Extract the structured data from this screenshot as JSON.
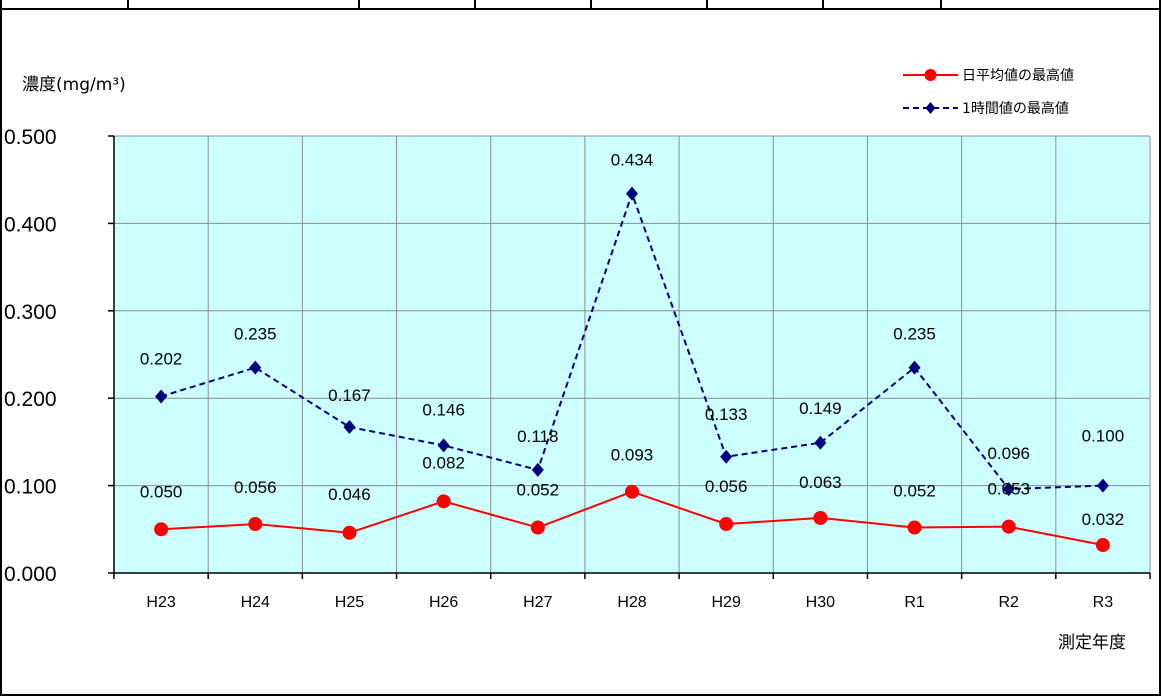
{
  "chart_data": {
    "type": "line",
    "ylabel": "濃度(mg/m³)",
    "xlabel": "測定年度",
    "categories": [
      "H23",
      "H24",
      "H25",
      "H26",
      "H27",
      "H28",
      "H29",
      "H30",
      "R1",
      "R2",
      "R3"
    ],
    "ylim": [
      0,
      0.5
    ],
    "yticks": [
      "0.000",
      "0.100",
      "0.200",
      "0.300",
      "0.400",
      "0.500"
    ],
    "grid": true,
    "legend_position": "top-right",
    "plot_background": "#ccffff",
    "series": [
      {
        "name": "日平均値の最高値",
        "color": "#ff0000",
        "marker": "circle",
        "line_style": "solid",
        "values": [
          0.05,
          0.056,
          0.046,
          0.082,
          0.052,
          0.093,
          0.056,
          0.063,
          0.052,
          0.053,
          0.032
        ],
        "labels": [
          "0.050",
          "0.056",
          "0.046",
          "0.082",
          "0.052",
          "0.093",
          "0.056",
          "0.063",
          "0.052",
          "0.053",
          "0.032"
        ]
      },
      {
        "name": "1時間値の最高値",
        "color": "#000080",
        "marker": "diamond",
        "line_style": "dashed",
        "values": [
          0.202,
          0.235,
          0.167,
          0.146,
          0.118,
          0.434,
          0.133,
          0.149,
          0.235,
          0.096,
          0.1
        ],
        "labels": [
          "0.202",
          "0.235",
          "0.167",
          "0.146",
          "0.118",
          "0.434",
          "0.133",
          "0.149",
          "0.235",
          "0.096",
          "0.100"
        ]
      }
    ]
  }
}
